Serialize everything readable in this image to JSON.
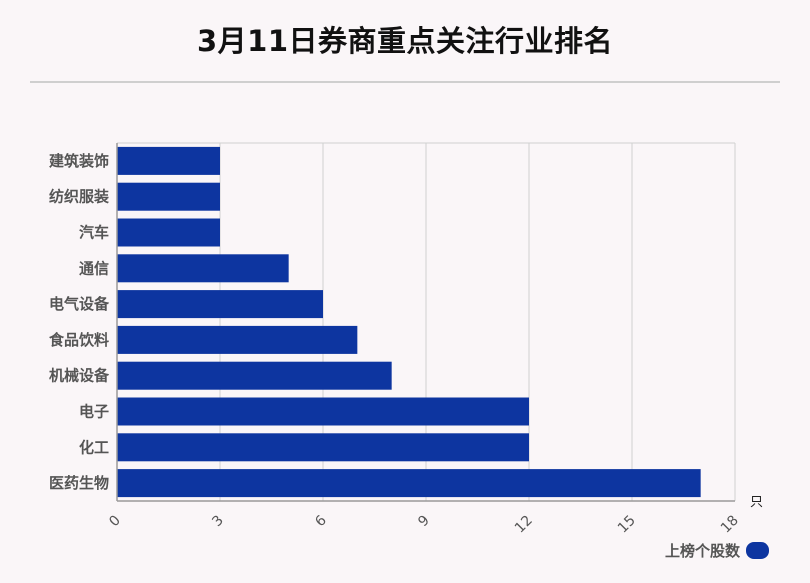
{
  "title": "3月11日券商重点关注行业排名",
  "colors": {
    "bar": "#0d35a0",
    "grid": "#d0d0d0",
    "axis": "#999999"
  },
  "chart_data": {
    "type": "bar",
    "orientation": "horizontal",
    "categories": [
      "建筑装饰",
      "纺织服装",
      "汽车",
      "通信",
      "电气设备",
      "食品饮料",
      "机械设备",
      "电子",
      "化工",
      "医药生物"
    ],
    "series": [
      {
        "name": "上榜个股数",
        "values": [
          3,
          3,
          3,
          5,
          6,
          7,
          8,
          12,
          12,
          17
        ]
      }
    ],
    "xlim": [
      0,
      18
    ],
    "xticks": [
      "0",
      "3",
      "6",
      "9",
      "12",
      "15",
      "18"
    ],
    "unit": "只",
    "grid": true,
    "legend_position": "bottom-right"
  }
}
